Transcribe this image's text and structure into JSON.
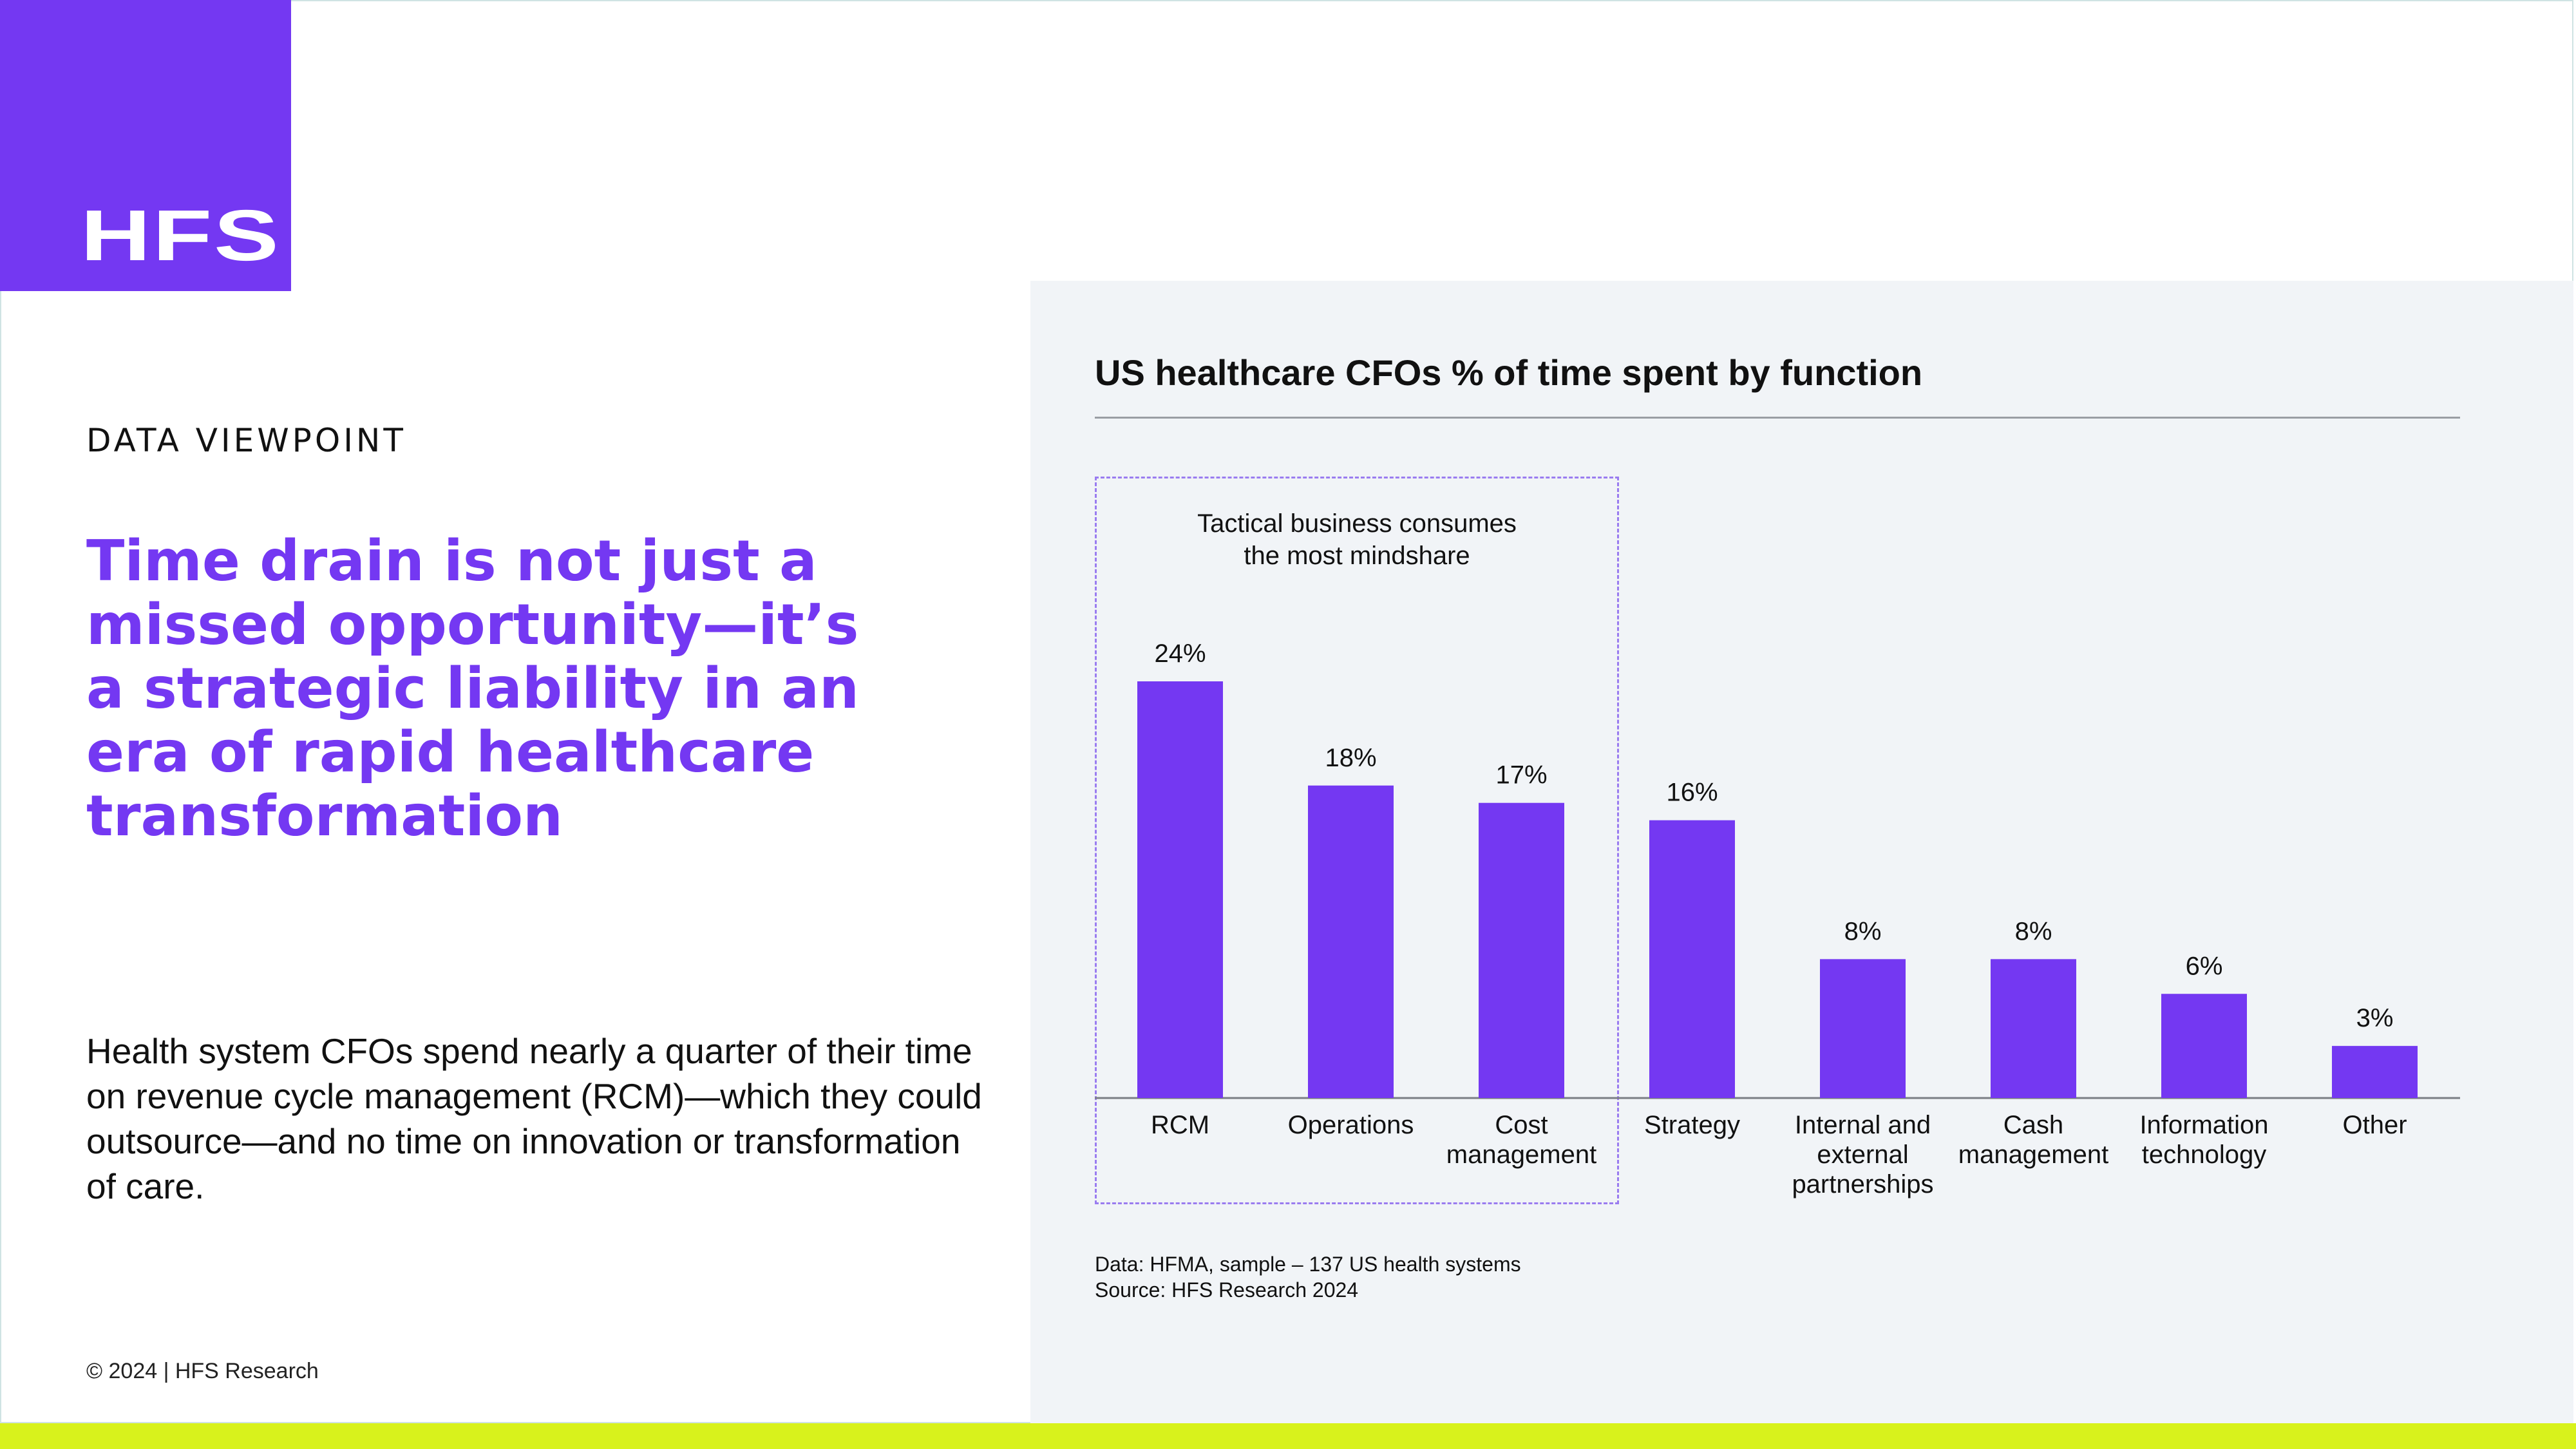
{
  "logo": {
    "text": "HFS"
  },
  "eyebrow": "DATA VIEWPOINT",
  "headline": "Time drain is not just a missed opportunity—it’s a strategic liability in an era of rapid healthcare transformation",
  "body": "Health system CFOs spend nearly a quarter of their time on revenue cycle management (RCM)—which they could outsource—and no time on innovation or transformation of care.",
  "copyright": "© 2024 | HFS Research",
  "colors": {
    "brand": "#7438f2",
    "accent_bar": "#d8f21c",
    "panel": "#f1f4f7"
  },
  "chart_data": {
    "type": "bar",
    "title": "US healthcare CFOs % of time spent by function",
    "xlabel": "",
    "ylabel": "",
    "ylim": [
      0,
      24
    ],
    "categories": [
      "RCM",
      "Operations",
      "Cost management",
      "Strategy",
      "Internal and external partnerships",
      "Cash management",
      "Information technology",
      "Other"
    ],
    "category_lines": [
      [
        "RCM"
      ],
      [
        "Operations"
      ],
      [
        "Cost",
        "management"
      ],
      [
        "Strategy"
      ],
      [
        "Internal and",
        "external",
        "partnerships"
      ],
      [
        "Cash",
        "management"
      ],
      [
        "Information",
        "technology"
      ],
      [
        "Other"
      ]
    ],
    "values": [
      24,
      18,
      17,
      16,
      8,
      8,
      6,
      3
    ],
    "value_labels": [
      "24%",
      "18%",
      "17%",
      "16%",
      "8%",
      "8%",
      "6%",
      "3%"
    ],
    "bar_color": "#7438f2",
    "grid": false,
    "legend": "none",
    "annotation": {
      "lines": [
        "Tactical business consumes",
        "the most mindshare"
      ],
      "spans_categories": [
        "RCM",
        "Operations",
        "Cost management"
      ]
    },
    "notes": [
      "Data: HFMA, sample – 137 US health systems",
      "Source: HFS Research 2024"
    ]
  }
}
